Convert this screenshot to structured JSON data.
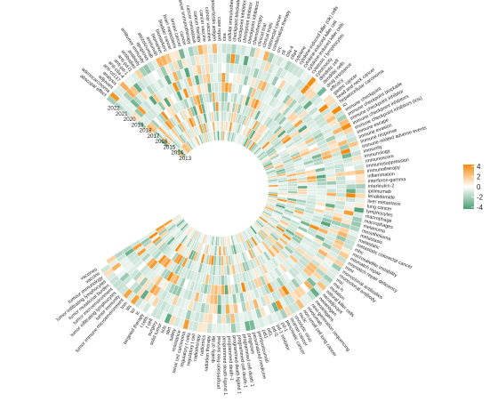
{
  "chart_data": {
    "type": "heatmap",
    "layout": "circular",
    "title": "",
    "years": [
      "2013",
      "2014",
      "2015",
      "2016",
      "2017",
      "2018",
      "2019",
      "2020",
      "2021",
      "2022"
    ],
    "keywords": [
      "abscopal effect",
      "adenocarcinoma",
      "adjuvant",
      "analysis",
      "anti-cd137",
      "anti-ctla-4",
      "anti-pd-1",
      "anti-pd-l1",
      "antibodies",
      "antibody",
      "antitumor immunity",
      "apoptosis",
      "atezolizumab",
      "avelumab",
      "biomarker",
      "biomarkers",
      "bladder cancer",
      "brain metastasis",
      "breast cancer",
      "cancer",
      "cancer immunotherapy",
      "cancer metastasis",
      "cancer therapy",
      "cancer vaccine",
      "cancer vaccines",
      "cancer/testis antigen",
      "case report",
      "cea",
      "cellular immunotherapy",
      "checkpoint blockade",
      "checkpoint inhibition",
      "checkpoint inhibitor",
      "checkpoint inhibitors",
      "chemotherapy",
      "clinical trial",
      "clinical trials",
      "colorectal cancer",
      "combination therapy",
      "crc",
      "ctl",
      "ctla-4",
      "ctla4",
      "cytokine",
      "cytokine-induced killer (cik) cells",
      "cytokine-induced killer cell",
      "cytokine-induced killer cells",
      "cytotoxic t lymphocytes",
      "cytotoxicity",
      "dendritic cell",
      "dendritic cells",
      "drug resistance",
      "efficacy",
      "gastric cancer",
      "head and neck cancer",
      "hepatocellular carcinoma",
      "ici",
      "immune checkpoint",
      "immune checkpoint blockade",
      "immune checkpoint inhibitor",
      "immune checkpoint inhibitors",
      "immune checkpoint inhibitors (icis)",
      "immune escape",
      "immune evasion",
      "immune response",
      "immune-related adverse events",
      "immunity",
      "immunology",
      "immunoscore",
      "immunosuppression",
      "immunotherapy",
      "inflammation",
      "interferon-gamma",
      "interleukin-2",
      "ipilimumab",
      "lenalidomide",
      "liver metastasis",
      "lung cancer",
      "lymphocytes",
      "macrophage",
      "macrophages",
      "melanoma",
      "mesothelioma",
      "metastasis",
      "metastatic",
      "metastatic colorectal cancer",
      "mhc",
      "microsatellite instability",
      "mismatch repair",
      "mismatch repair deficiency",
      "mmr",
      "monoclonal antibodies",
      "monoclonal antibody",
      "msi",
      "msi-h",
      "mutation",
      "natural killer cells",
      "neoadjuvant",
      "neoantigen",
      "neoantigens",
      "next-generation sequencing",
      "nivolumab",
      "non-small cell lung cancer",
      "nsclc",
      "oncolytic virus",
      "ovarian cancer",
      "pancreatic cancer",
      "pd-1",
      "pd-1 inhibitor",
      "pd-l1",
      "pd1",
      "pdl1",
      "pembrolizumab",
      "personalized medicine",
      "prognosis",
      "programmed cell death 1",
      "programmed cell death-1",
      "programmed death ligand 1",
      "programmed death-1",
      "programmed death-ligand 1",
      "progression-free survival",
      "quality of life",
      "radiation therapy",
      "radiomics",
      "radiotherapy",
      "regulatory t cell",
      "regulatory t cells",
      "renal cell carcinoma",
      "resistance",
      "safety",
      "sbrt",
      "sclc",
      "solid tumor",
      "surgery",
      "t cell",
      "t cells",
      "targeted therapy",
      "tc",
      "tcr",
      "tils",
      "tnm",
      "tumor immune microenvironment",
      "tumor immunity",
      "tumor infiltrating lymphocytes",
      "tumor microenvironment",
      "tumor mutational burden",
      "tumor-infiltrating lymphocytes",
      "tumour immunology",
      "vaccine",
      "vaccines"
    ],
    "color_scale": {
      "min": -4,
      "max": 4,
      "low_color": "#4a9e74",
      "mid_color": "#ffffff",
      "high_color": "#f48a0c",
      "legend_ticks": [
        "4",
        "2",
        "0",
        "-2",
        "-4"
      ]
    },
    "grid": false,
    "legend_position": "right"
  }
}
